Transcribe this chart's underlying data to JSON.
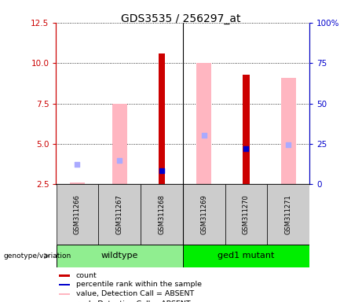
{
  "title": "GDS3535 / 256297_at",
  "samples": [
    "GSM311266",
    "GSM311267",
    "GSM311268",
    "GSM311269",
    "GSM311270",
    "GSM311271"
  ],
  "groups": [
    {
      "name": "wildtype",
      "color": "#90EE90",
      "samples": [
        0,
        1,
        2
      ]
    },
    {
      "name": "ged1 mutant",
      "color": "#00EE00",
      "samples": [
        3,
        4,
        5
      ]
    }
  ],
  "ylim_left": [
    2.5,
    12.5
  ],
  "ylim_right": [
    0,
    100
  ],
  "yticks_left": [
    2.5,
    5.0,
    7.5,
    10.0,
    12.5
  ],
  "yticks_right": [
    0,
    25,
    50,
    75,
    100
  ],
  "right_tick_labels": [
    "0",
    "25",
    "50",
    "75",
    "100%"
  ],
  "bar_bottom": 2.5,
  "red_bars": {
    "values": [
      null,
      null,
      10.6,
      null,
      9.3,
      null
    ],
    "color": "#CC0000"
  },
  "pink_bars": {
    "values": [
      2.6,
      7.5,
      2.2,
      10.0,
      2.2,
      9.1
    ],
    "color": "#FFB6C1"
  },
  "blue_squares": {
    "values": [
      null,
      null,
      3.35,
      null,
      4.7,
      null
    ],
    "color": "#0000CC",
    "size": 18
  },
  "light_blue_squares": {
    "values": [
      3.75,
      3.95,
      null,
      5.55,
      null,
      4.95
    ],
    "color": "#AAAAFF",
    "size": 18
  },
  "legend": [
    {
      "label": "count",
      "color": "#CC0000"
    },
    {
      "label": "percentile rank within the sample",
      "color": "#0000CC"
    },
    {
      "label": "value, Detection Call = ABSENT",
      "color": "#FFB6C1"
    },
    {
      "label": "rank, Detection Call = ABSENT",
      "color": "#BBBBFF"
    }
  ],
  "genotype_label": "genotype/variation",
  "pink_bar_width": 0.35,
  "red_bar_width": 0.15,
  "sample_cell_color": "#CCCCCC",
  "left_axis_color": "#CC0000",
  "right_axis_color": "#0000CC",
  "title_fontsize": 10,
  "tick_fontsize": 7.5
}
